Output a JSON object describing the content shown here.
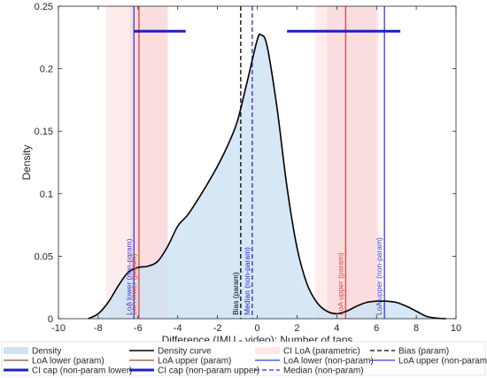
{
  "chart_data": {
    "type": "area",
    "title": "",
    "xlabel": "Difference (IMU - video): Number of taps",
    "ylabel": "Density",
    "xlim": [
      -10,
      10
    ],
    "ylim": [
      0,
      0.25
    ],
    "xticks": [
      -10,
      -8,
      -6,
      -4,
      -2,
      0,
      2,
      4,
      6,
      8,
      10
    ],
    "yticks": [
      0,
      0.05,
      0.1,
      0.15,
      0.2,
      0.25
    ],
    "ytick_labels": [
      "0",
      "0.05",
      "0.1",
      "0.15",
      "0.2",
      "0.25"
    ],
    "grid": false,
    "colors": {
      "density_fill": "#cfe3f3",
      "density_curve": "#000000",
      "loa_param": "#e8413c",
      "loa_nonparam": "#3a3ad8",
      "ci_param_band": "#fde6e6",
      "ci_cap": "#1f1fc0",
      "bias": "#000000",
      "median": "#2a2ad0",
      "label_brown": "#8b5a2b"
    },
    "density_curve": {
      "x": [
        -8.5,
        -8.0,
        -7.5,
        -7.0,
        -6.5,
        -6.0,
        -5.5,
        -5.0,
        -4.5,
        -4.0,
        -3.5,
        -3.0,
        -2.5,
        -2.0,
        -1.5,
        -1.0,
        -0.5,
        0.0,
        0.2,
        0.5,
        1.0,
        1.5,
        2.0,
        2.5,
        3.0,
        3.5,
        4.0,
        4.5,
        5.0,
        5.5,
        6.0,
        6.5,
        7.0,
        7.5,
        8.0,
        8.5,
        9.0,
        9.5
      ],
      "y": [
        0.0,
        0.004,
        0.013,
        0.026,
        0.037,
        0.041,
        0.042,
        0.046,
        0.058,
        0.074,
        0.083,
        0.095,
        0.108,
        0.122,
        0.138,
        0.158,
        0.19,
        0.223,
        0.227,
        0.218,
        0.168,
        0.105,
        0.057,
        0.028,
        0.013,
        0.006,
        0.004,
        0.006,
        0.01,
        0.013,
        0.014,
        0.014,
        0.013,
        0.01,
        0.006,
        0.002,
        0.0005,
        0.0
      ]
    },
    "ci_bands_param": [
      [
        -7.6,
        -4.5
      ],
      [
        2.9,
        6.0
      ]
    ],
    "ci_bands_nonparam": [
      [
        -6.4,
        -4.5
      ],
      [
        3.5,
        6.1
      ]
    ],
    "ci_caps": [
      {
        "x": [
          -6.2,
          -3.6
        ],
        "y": 0.23,
        "series": "CI cap (non-param lower)"
      },
      {
        "x": [
          1.5,
          7.2
        ],
        "y": 0.23,
        "series": "CI cap (non-param upper)"
      }
    ],
    "vertical_lines": [
      {
        "key": "loa_lower_nonparam",
        "x": -6.2,
        "label": "LoA lower (non-param)",
        "style": "solid",
        "color": "#3a3ad8"
      },
      {
        "key": "loa_lower_param",
        "x": -5.95,
        "label": "LoA lower (param)",
        "style": "solid",
        "color": "#e8413c"
      },
      {
        "key": "bias",
        "x": -0.83,
        "label": "Bias (param)",
        "style": "dashed",
        "color": "#000000"
      },
      {
        "key": "median",
        "x": -0.25,
        "label": "Median (non-param)",
        "style": "dashed",
        "color": "#2a2ad0"
      },
      {
        "key": "loa_upper_param",
        "x": 4.45,
        "label": "LoA upper (param)",
        "style": "solid",
        "color": "#e8413c"
      },
      {
        "key": "loa_upper_nonparam",
        "x": 6.4,
        "label": "LoA upper (non-param)",
        "style": "solid",
        "color": "#3a3ad8"
      }
    ],
    "legend": {
      "placement": "bottom",
      "entries": [
        {
          "label": "Density",
          "kind": "patch-blue"
        },
        {
          "label": "Density curve",
          "kind": "line-black"
        },
        {
          "label": "CI LoA (parametric)",
          "kind": "patch-pink"
        },
        {
          "label": "Bias (param)",
          "kind": "dash-black"
        },
        {
          "label": "LoA lower (param)",
          "kind": "line-brown"
        },
        {
          "label": "LoA upper (param)",
          "kind": "line-brown"
        },
        {
          "label": "LoA lower (non-param)",
          "kind": "line-blue"
        },
        {
          "label": "LoA upper (non-param)",
          "kind": "line-blue"
        },
        {
          "label": "CI cap (non-param lower)",
          "kind": "thick-blue"
        },
        {
          "label": "CI cap (non-param upper)",
          "kind": "thick-blue"
        },
        {
          "label": "Median (non-param)",
          "kind": "dash-blue"
        }
      ]
    }
  }
}
